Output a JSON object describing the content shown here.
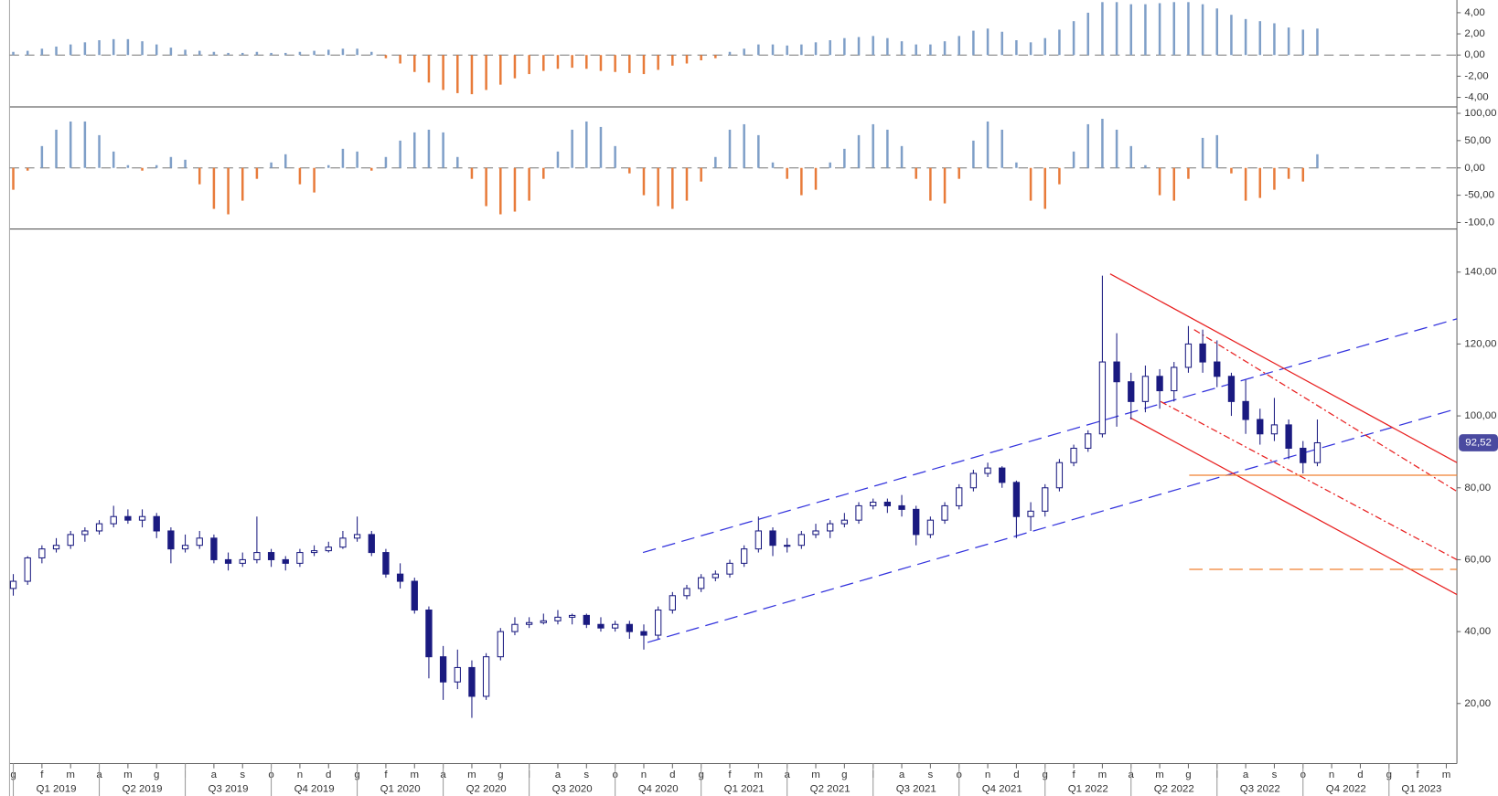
{
  "chart_data": [
    {
      "type": "bar",
      "pos_color": "#7f9fc8",
      "neg_color": "#e87b3a",
      "ylim": [
        -4.9,
        5.2
      ],
      "yticks": [
        {
          "value": 4,
          "label": "4,00"
        },
        {
          "value": 2,
          "label": "2,00"
        },
        {
          "value": 0,
          "label": "0,00"
        },
        {
          "value": -2,
          "label": "-2,00"
        },
        {
          "value": -4,
          "label": "-4,00"
        }
      ],
      "values": [
        0.3,
        0.4,
        0.6,
        0.8,
        1.0,
        1.2,
        1.4,
        1.5,
        1.5,
        1.3,
        1.0,
        0.7,
        0.5,
        0.4,
        0.3,
        0.2,
        0.2,
        0.3,
        0.2,
        0.2,
        0.3,
        0.4,
        0.5,
        0.6,
        0.6,
        0.3,
        -0.3,
        -0.8,
        -1.6,
        -2.6,
        -3.3,
        -3.6,
        -3.7,
        -3.3,
        -2.8,
        -2.2,
        -1.8,
        -1.5,
        -1.3,
        -1.2,
        -1.3,
        -1.5,
        -1.6,
        -1.7,
        -1.8,
        -1.4,
        -1.0,
        -0.8,
        -0.5,
        -0.3,
        0.3,
        0.6,
        1.0,
        1.0,
        0.9,
        1.0,
        1.2,
        1.4,
        1.6,
        1.7,
        1.8,
        1.6,
        1.3,
        1.0,
        1.0,
        1.3,
        1.8,
        2.3,
        2.5,
        2.2,
        1.4,
        1.2,
        1.6,
        2.4,
        3.2,
        4.0,
        5.0,
        5.0,
        4.8,
        4.8,
        4.9,
        5.0,
        5.0,
        4.8,
        4.4,
        3.8,
        3.4,
        3.2,
        3.0,
        2.6,
        2.4,
        2.5
      ]
    },
    {
      "type": "bar",
      "pos_color": "#7f9fc8",
      "neg_color": "#e87b3a",
      "ylim": [
        -112,
        110
      ],
      "yticks": [
        {
          "value": 100,
          "label": "100,00"
        },
        {
          "value": 50,
          "label": "50,00"
        },
        {
          "value": 0,
          "label": "0,00"
        },
        {
          "value": -50,
          "label": "-50,00"
        },
        {
          "value": -100,
          "label": "-100,0"
        }
      ],
      "values": [
        -40,
        -5,
        40,
        70,
        85,
        85,
        60,
        30,
        5,
        -5,
        5,
        20,
        15,
        -30,
        -75,
        -85,
        -60,
        -20,
        10,
        25,
        -30,
        -45,
        5,
        35,
        30,
        -5,
        20,
        50,
        65,
        70,
        65,
        20,
        -20,
        -70,
        -85,
        -80,
        -60,
        -20,
        30,
        70,
        85,
        75,
        40,
        -10,
        -50,
        -70,
        -75,
        -60,
        -25,
        20,
        70,
        80,
        60,
        10,
        -20,
        -50,
        -40,
        10,
        35,
        60,
        80,
        70,
        40,
        -20,
        -60,
        -65,
        -20,
        50,
        85,
        70,
        10,
        -60,
        -75,
        -30,
        30,
        80,
        90,
        70,
        40,
        5,
        -50,
        -60,
        -20,
        55,
        60,
        -10,
        -60,
        -55,
        -40,
        -20,
        -25,
        25
      ]
    },
    {
      "type": "candlestick",
      "up_color": "#ffffff",
      "down_color": "#1a1a80",
      "edge_color": "#1a1a80",
      "ylim": [
        3.3,
        151.7
      ],
      "xlim": [
        -0.13,
        50.37
      ],
      "yticks": [
        {
          "value": 140,
          "label": "140,00"
        },
        {
          "value": 120,
          "label": "120,00"
        },
        {
          "value": 100,
          "label": "100,00"
        },
        {
          "value": 80,
          "label": "80,00"
        },
        {
          "value": 60,
          "label": "60,00"
        },
        {
          "value": 40,
          "label": "40,00"
        },
        {
          "value": 20,
          "label": "20,00"
        }
      ],
      "categories": [
        "g",
        "f",
        "m",
        "a",
        "m",
        "g",
        "l",
        "a",
        "s",
        "o",
        "n",
        "d",
        "g",
        "f",
        "m",
        "a",
        "m",
        "g",
        "l",
        "a",
        "s",
        "o",
        "n",
        "d",
        "g",
        "f",
        "m",
        "a",
        "m",
        "g",
        "l",
        "a",
        "s",
        "o",
        "n",
        "d",
        "g",
        "f",
        "m",
        "a",
        "m",
        "g",
        "l",
        "a",
        "s",
        "o",
        "n",
        "d",
        "g",
        "f",
        "m"
      ],
      "quarters": [
        "Q1 2019",
        "Q2 2019",
        "Q3 2019",
        "Q4 2019",
        "Q1 2020",
        "Q2 2020",
        "Q3 2020",
        "Q4 2020",
        "Q1 2021",
        "Q2 2021",
        "Q3 2021",
        "Q4 2021",
        "Q1 2022",
        "Q2 2022",
        "Q3 2022",
        "Q4 2022",
        "Q1 2023"
      ],
      "x": [
        0,
        0.5,
        1,
        1.5,
        2,
        2.5,
        3,
        3.5,
        4,
        4.5,
        5,
        5.5,
        6,
        6.5,
        7,
        7.5,
        8,
        8.5,
        9,
        9.5,
        10,
        10.5,
        11,
        11.5,
        12,
        12.5,
        13,
        13.5,
        14,
        14.5,
        15,
        15.5,
        16,
        16.5,
        17,
        17.5,
        18,
        18.5,
        19,
        19.5,
        20,
        20.5,
        21,
        21.5,
        22,
        22.5,
        23,
        23.5,
        24,
        24.5,
        25,
        25.5,
        26,
        26.5,
        27,
        27.5,
        28,
        28.5,
        29,
        29.5,
        30,
        30.5,
        31,
        31.5,
        32,
        32.5,
        33,
        33.5,
        34,
        34.5,
        35,
        35.5,
        36,
        36.5,
        37,
        37.5,
        38,
        38.5,
        39,
        39.5,
        40,
        40.5,
        41,
        41.5,
        42,
        42.5,
        43,
        43.5,
        44,
        44.5,
        45,
        45.5
      ],
      "candles": [
        [
          52,
          56,
          50,
          54
        ],
        [
          54,
          61,
          53,
          60.5
        ],
        [
          60.5,
          64,
          59,
          63
        ],
        [
          63,
          66,
          62,
          64
        ],
        [
          64,
          68,
          63,
          67
        ],
        [
          67,
          69,
          65,
          68
        ],
        [
          68,
          71,
          67,
          70
        ],
        [
          70,
          75,
          69,
          72
        ],
        [
          72,
          74,
          70,
          71
        ],
        [
          71,
          74,
          69,
          72
        ],
        [
          72,
          73,
          66,
          68
        ],
        [
          68,
          69,
          59,
          63
        ],
        [
          63,
          67,
          62,
          64
        ],
        [
          64,
          68,
          63,
          66
        ],
        [
          66,
          67,
          59,
          60
        ],
        [
          60,
          62,
          57,
          59
        ],
        [
          59,
          62,
          58,
          60
        ],
        [
          60,
          72,
          59,
          62
        ],
        [
          62,
          63,
          58,
          60
        ],
        [
          60,
          61,
          57,
          59
        ],
        [
          59,
          63,
          58,
          62
        ],
        [
          62,
          64,
          61,
          62.5
        ],
        [
          62.5,
          65,
          62,
          63.5
        ],
        [
          63.5,
          68,
          63,
          66
        ],
        [
          66,
          72,
          65,
          67
        ],
        [
          67,
          68,
          61,
          62
        ],
        [
          62,
          63,
          55,
          56
        ],
        [
          56,
          59,
          52,
          54
        ],
        [
          54,
          55,
          45,
          46
        ],
        [
          46,
          47,
          27,
          33
        ],
        [
          33,
          36,
          21,
          26
        ],
        [
          26,
          35,
          24,
          30
        ],
        [
          30,
          32,
          16,
          22
        ],
        [
          22,
          34,
          21,
          33
        ],
        [
          33,
          41,
          32,
          40
        ],
        [
          40,
          44,
          39,
          42
        ],
        [
          42,
          44,
          41,
          42.5
        ],
        [
          42.5,
          45,
          42,
          43
        ],
        [
          43,
          46,
          42,
          44
        ],
        [
          44,
          45,
          42,
          44.5
        ],
        [
          44.5,
          45,
          41,
          42
        ],
        [
          42,
          44,
          40,
          41
        ],
        [
          41,
          43,
          40,
          42
        ],
        [
          42,
          43,
          38,
          40
        ],
        [
          40,
          42,
          35,
          39
        ],
        [
          39,
          47,
          38,
          46
        ],
        [
          46,
          51,
          45,
          50
        ],
        [
          50,
          53,
          49,
          52
        ],
        [
          52,
          56,
          51,
          55
        ],
        [
          55,
          57,
          54,
          56
        ],
        [
          56,
          60,
          55,
          59
        ],
        [
          59,
          64,
          58,
          63
        ],
        [
          63,
          72,
          62,
          68
        ],
        [
          68,
          69,
          61,
          64
        ],
        [
          64,
          66,
          62,
          64
        ],
        [
          64,
          68,
          63,
          67
        ],
        [
          67,
          70,
          66,
          68
        ],
        [
          68,
          71,
          66,
          70
        ],
        [
          70,
          73,
          69,
          71
        ],
        [
          71,
          76,
          70,
          75
        ],
        [
          75,
          77,
          74,
          76
        ],
        [
          76,
          77,
          73,
          75
        ],
        [
          75,
          78,
          72,
          74
        ],
        [
          74,
          75,
          64,
          67
        ],
        [
          67,
          72,
          66,
          71
        ],
        [
          71,
          76,
          70,
          75
        ],
        [
          75,
          81,
          74,
          80
        ],
        [
          80,
          85,
          79,
          84
        ],
        [
          84,
          87,
          83,
          85.5
        ],
        [
          85.5,
          86,
          80,
          81.5
        ],
        [
          81.5,
          82,
          66,
          72
        ],
        [
          72,
          76,
          68,
          73.5
        ],
        [
          73.5,
          81,
          72,
          80
        ],
        [
          80,
          88,
          79,
          87
        ],
        [
          87,
          92,
          86,
          91
        ],
        [
          91,
          96,
          90,
          95
        ],
        [
          95,
          139,
          94,
          115
        ],
        [
          115,
          123,
          97,
          109.5
        ],
        [
          109.5,
          112,
          99,
          104
        ],
        [
          104,
          114,
          101,
          111
        ],
        [
          111,
          113,
          102,
          107
        ],
        [
          107,
          115,
          104,
          113.5
        ],
        [
          113.5,
          125,
          112,
          120
        ],
        [
          120,
          124,
          112,
          115
        ],
        [
          115,
          121,
          108,
          111
        ],
        [
          111,
          112,
          100,
          104
        ],
        [
          104,
          110,
          95,
          99
        ],
        [
          99,
          102,
          92,
          95
        ],
        [
          95,
          105,
          93,
          97.5
        ],
        [
          97.5,
          99,
          88,
          91
        ],
        [
          91,
          93,
          84,
          87
        ],
        [
          87,
          99,
          86,
          92.52
        ]
      ],
      "last_price": {
        "value": 92.52,
        "label": "92,52"
      },
      "last_price_color": "#4a4aa0",
      "lines": [
        {
          "style": "dashed",
          "color": "#3333dd",
          "x": [
            21.97,
            50.37
          ],
          "y": [
            62,
            127
          ]
        },
        {
          "style": "dashed",
          "color": "#3333dd",
          "x": [
            22.13,
            50.37
          ],
          "y": [
            37,
            102
          ]
        },
        {
          "style": "solid",
          "color": "#e82020",
          "x": [
            38.27,
            50.37
          ],
          "y": [
            139.5,
            87
          ]
        },
        {
          "style": "solid",
          "color": "#e82020",
          "x": [
            38.97,
            50.37
          ],
          "y": [
            99.5,
            50.3
          ]
        },
        {
          "style": "dashdot",
          "color": "#e82020",
          "x": [
            41.2,
            50.37
          ],
          "y": [
            124,
            79
          ]
        },
        {
          "style": "dashdot",
          "color": "#e82020",
          "x": [
            40.03,
            50.37
          ],
          "y": [
            104,
            60
          ]
        },
        {
          "style": "solid",
          "color": "#f08030",
          "x": [
            41.03,
            50.37
          ],
          "y": [
            83.5,
            83.5
          ]
        },
        {
          "style": "dashed",
          "color": "#f08030",
          "x": [
            41.03,
            50.37
          ],
          "y": [
            57.3,
            57.3
          ]
        }
      ]
    }
  ]
}
